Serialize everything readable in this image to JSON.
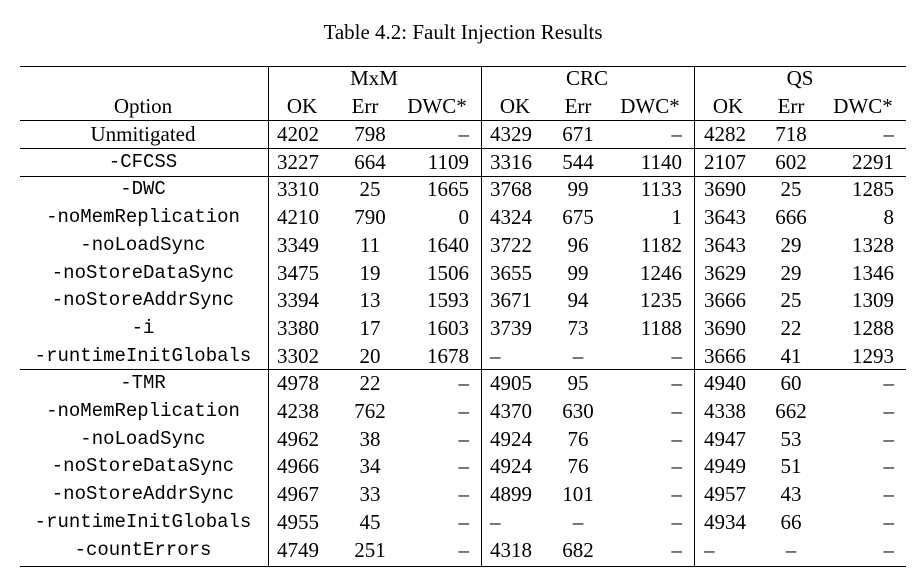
{
  "caption": "Table 4.2: Fault Injection Results",
  "header": {
    "groups": [
      "MxM",
      "CRC",
      "QS"
    ],
    "option": "Option",
    "columns": [
      "OK",
      "Err",
      "DWC*",
      "OK",
      "Err",
      "DWC*",
      "OK",
      "Err",
      "DWC*"
    ]
  },
  "groups": [
    [
      {
        "option": "Unmitigated",
        "cells": [
          "4202",
          "798",
          "–",
          "4329",
          "671",
          "–",
          "4282",
          "718",
          "–"
        ]
      }
    ],
    [
      {
        "option": "-CFCSS",
        "cells": [
          "3227",
          "664",
          "1109",
          "3316",
          "544",
          "1140",
          "2107",
          "602",
          "2291"
        ]
      }
    ],
    [
      {
        "option": "-DWC",
        "cells": [
          "3310",
          "25",
          "1665",
          "3768",
          "99",
          "1133",
          "3690",
          "25",
          "1285"
        ]
      },
      {
        "option": "-noMemReplication",
        "cells": [
          "4210",
          "790",
          "0",
          "4324",
          "675",
          "1",
          "3643",
          "666",
          "8"
        ]
      },
      {
        "option": "-noLoadSync",
        "cells": [
          "3349",
          "11",
          "1640",
          "3722",
          "96",
          "1182",
          "3643",
          "29",
          "1328"
        ]
      },
      {
        "option": "-noStoreDataSync",
        "cells": [
          "3475",
          "19",
          "1506",
          "3655",
          "99",
          "1246",
          "3629",
          "29",
          "1346"
        ]
      },
      {
        "option": "-noStoreAddrSync",
        "cells": [
          "3394",
          "13",
          "1593",
          "3671",
          "94",
          "1235",
          "3666",
          "25",
          "1309"
        ]
      },
      {
        "option": "-i",
        "cells": [
          "3380",
          "17",
          "1603",
          "3739",
          "73",
          "1188",
          "3690",
          "22",
          "1288"
        ]
      },
      {
        "option": "-runtimeInitGlobals",
        "cells": [
          "3302",
          "20",
          "1678",
          "–",
          "–",
          "–",
          "3666",
          "41",
          "1293"
        ]
      }
    ],
    [
      {
        "option": "-TMR",
        "cells": [
          "4978",
          "22",
          "–",
          "4905",
          "95",
          "–",
          "4940",
          "60",
          "–"
        ]
      },
      {
        "option": "-noMemReplication",
        "cells": [
          "4238",
          "762",
          "–",
          "4370",
          "630",
          "–",
          "4338",
          "662",
          "–"
        ]
      },
      {
        "option": "-noLoadSync",
        "cells": [
          "4962",
          "38",
          "–",
          "4924",
          "76",
          "–",
          "4947",
          "53",
          "–"
        ]
      },
      {
        "option": "-noStoreDataSync",
        "cells": [
          "4966",
          "34",
          "–",
          "4924",
          "76",
          "–",
          "4949",
          "51",
          "–"
        ]
      },
      {
        "option": "-noStoreAddrSync",
        "cells": [
          "4967",
          "33",
          "–",
          "4899",
          "101",
          "–",
          "4957",
          "43",
          "–"
        ]
      },
      {
        "option": "-runtimeInitGlobals",
        "cells": [
          "4955",
          "45",
          "–",
          "–",
          "–",
          "–",
          "4934",
          "66",
          "–"
        ]
      },
      {
        "option": "-countErrors",
        "cells": [
          "4749",
          "251",
          "–",
          "4318",
          "682",
          "–",
          "–",
          "–",
          "–"
        ]
      }
    ]
  ]
}
